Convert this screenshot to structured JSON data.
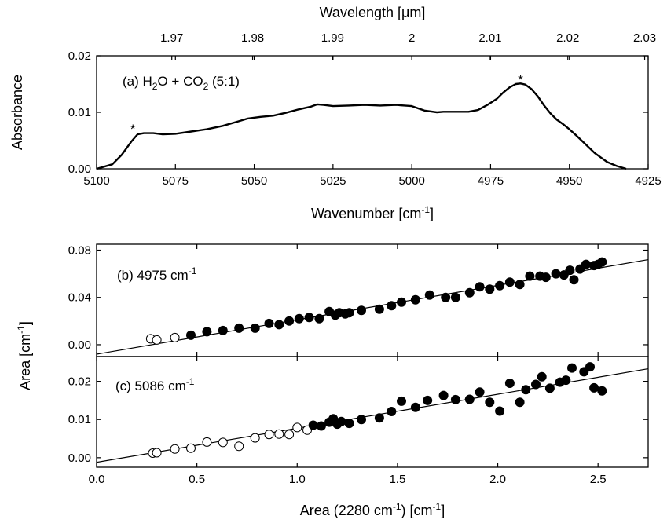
{
  "chart_data": [
    {
      "panel": "a",
      "type": "line",
      "title": "",
      "label": "(a) H₂O + CO₂ (5:1)",
      "label_parts": {
        "prefix": "(a) H",
        "sub1": "2",
        "mid": "O + CO",
        "sub2": "2",
        "suffix": " (5:1)"
      },
      "xlabel": "Wavenumber [cm-1]",
      "xlabel_parts": {
        "base": "Wavenumber [cm",
        "sup": "-1",
        "close": "]"
      },
      "x2label": "Wavelength [μm]",
      "ylabel": "Absorbance",
      "xlim": [
        5100,
        4925
      ],
      "ylim": [
        0,
        0.02
      ],
      "x_reversed": true,
      "x_ticks": [
        5100,
        5075,
        5050,
        5025,
        5000,
        4975,
        4950,
        4925
      ],
      "x_tick_labels": [
        "5100",
        "5075",
        "5050",
        "5025",
        "5000",
        "4975",
        "4950",
        "4925"
      ],
      "y_ticks": [
        0,
        0.01,
        0.02
      ],
      "y_tick_labels": [
        "0.00",
        "0.01",
        "0.02"
      ],
      "top_axis_ticks_um": [
        1.97,
        1.98,
        1.99,
        2.0,
        2.01,
        2.02,
        2.03
      ],
      "top_axis_tick_labels": [
        "1.97",
        "1.98",
        "1.99",
        "2",
        "2.01",
        "2.02",
        "2.03"
      ],
      "markers": [
        {
          "text": "*",
          "x": 5088.5,
          "y": 0.0072
        },
        {
          "text": "*",
          "x": 4965.5,
          "y": 0.016
        }
      ],
      "series": [
        {
          "x": [
            5100,
            5095,
            5092,
            5089,
            5087,
            5085,
            5082,
            5079,
            5075,
            5070,
            5065,
            5060,
            5055,
            5052,
            5048,
            5044,
            5040,
            5036,
            5032,
            5030,
            5028,
            5025,
            5020,
            5015,
            5010,
            5005,
            5000,
            4996,
            4992,
            4990,
            4986,
            4982,
            4979,
            4976,
            4973,
            4971,
            4969,
            4967,
            4965.5,
            4964,
            4962,
            4960,
            4958,
            4956,
            4954,
            4952,
            4950,
            4948,
            4945,
            4942,
            4938,
            4935,
            4932
          ],
          "y": [
            0.0,
            0.0008,
            0.0025,
            0.0048,
            0.0061,
            0.0063,
            0.0063,
            0.0061,
            0.0062,
            0.0066,
            0.007,
            0.0076,
            0.0084,
            0.0089,
            0.0092,
            0.0094,
            0.0099,
            0.0105,
            0.011,
            0.0114,
            0.0113,
            0.0111,
            0.0112,
            0.0113,
            0.0112,
            0.0113,
            0.0111,
            0.0103,
            0.01,
            0.0101,
            0.0101,
            0.0101,
            0.0104,
            0.0113,
            0.0124,
            0.0135,
            0.0144,
            0.015,
            0.0151,
            0.0149,
            0.0141,
            0.0128,
            0.0112,
            0.0098,
            0.0087,
            0.0079,
            0.007,
            0.006,
            0.0044,
            0.0028,
            0.0012,
            0.0005,
            0.0
          ]
        }
      ]
    },
    {
      "panel": "b",
      "type": "scatter",
      "label": "(b) 4975 cm-1",
      "label_parts": {
        "base": "(b) 4975 cm",
        "sup": "-1"
      },
      "ylabel": "Area [cm-1]",
      "ylabel_parts": {
        "base": "Area [cm",
        "sup": "-1",
        "close": "]"
      },
      "xlim": [
        0,
        2.75
      ],
      "ylim": [
        -0.01,
        0.085
      ],
      "y_ticks": [
        0,
        0.04,
        0.08
      ],
      "y_tick_labels": [
        "0.00",
        "0.04",
        "0.08"
      ],
      "fit_line": {
        "x": [
          0,
          2.75
        ],
        "y": [
          -0.008,
          0.072
        ]
      },
      "series": [
        {
          "marker": "open-circle",
          "points": [
            [
              0.27,
              0.005
            ],
            [
              0.3,
              0.004
            ],
            [
              0.39,
              0.006
            ]
          ]
        },
        {
          "marker": "filled-circle",
          "points": [
            [
              0.47,
              0.008
            ],
            [
              0.55,
              0.011
            ],
            [
              0.63,
              0.012
            ],
            [
              0.71,
              0.014
            ],
            [
              0.79,
              0.014
            ],
            [
              0.86,
              0.018
            ],
            [
              0.91,
              0.017
            ],
            [
              0.96,
              0.02
            ],
            [
              1.01,
              0.022
            ],
            [
              1.06,
              0.023
            ],
            [
              1.11,
              0.022
            ],
            [
              1.16,
              0.028
            ],
            [
              1.19,
              0.025
            ],
            [
              1.21,
              0.027
            ],
            [
              1.24,
              0.026
            ],
            [
              1.26,
              0.027
            ],
            [
              1.32,
              0.029
            ],
            [
              1.41,
              0.03
            ],
            [
              1.47,
              0.033
            ],
            [
              1.52,
              0.036
            ],
            [
              1.59,
              0.038
            ],
            [
              1.66,
              0.042
            ],
            [
              1.74,
              0.04
            ],
            [
              1.79,
              0.04
            ],
            [
              1.86,
              0.044
            ],
            [
              1.91,
              0.049
            ],
            [
              1.96,
              0.047
            ],
            [
              2.01,
              0.05
            ],
            [
              2.06,
              0.053
            ],
            [
              2.11,
              0.051
            ],
            [
              2.16,
              0.058
            ],
            [
              2.21,
              0.058
            ],
            [
              2.24,
              0.057
            ],
            [
              2.29,
              0.06
            ],
            [
              2.33,
              0.059
            ],
            [
              2.36,
              0.063
            ],
            [
              2.38,
              0.055
            ],
            [
              2.41,
              0.064
            ],
            [
              2.44,
              0.068
            ],
            [
              2.48,
              0.067
            ],
            [
              2.5,
              0.068
            ],
            [
              2.52,
              0.07
            ]
          ]
        }
      ]
    },
    {
      "panel": "c",
      "type": "scatter",
      "label": "(c) 5086 cm-1",
      "label_parts": {
        "base": "(c) 5086 cm",
        "sup": "-1"
      },
      "xlabel": "Area (2280 cm-1) [cm-1]",
      "xlabel_parts": {
        "base": "Area (2280 cm",
        "sup1": "-1",
        "mid": ") [cm",
        "sup2": "-1",
        "close": "]"
      },
      "xlim": [
        0,
        2.75
      ],
      "ylim": [
        -0.0025,
        0.0265
      ],
      "x_ticks": [
        0.0,
        0.5,
        1.0,
        1.5,
        2.0,
        2.5
      ],
      "x_tick_labels": [
        "0.0",
        "0.5",
        "1.0",
        "1.5",
        "2.0",
        "2.5"
      ],
      "y_ticks": [
        0,
        0.01,
        0.02
      ],
      "y_tick_labels": [
        "0.00",
        "0.01",
        "0.02"
      ],
      "fit_line": {
        "x": [
          0,
          2.75
        ],
        "y": [
          -0.0012,
          0.0233
        ]
      },
      "series": [
        {
          "marker": "open-circle",
          "points": [
            [
              0.28,
              0.0012
            ],
            [
              0.3,
              0.0013
            ],
            [
              0.39,
              0.0023
            ],
            [
              0.47,
              0.0025
            ],
            [
              0.55,
              0.0041
            ],
            [
              0.63,
              0.004
            ],
            [
              0.71,
              0.003
            ],
            [
              0.79,
              0.0052
            ],
            [
              0.86,
              0.0061
            ],
            [
              0.91,
              0.0062
            ],
            [
              0.96,
              0.0061
            ],
            [
              1.0,
              0.0079
            ],
            [
              1.05,
              0.0072
            ]
          ]
        },
        {
          "marker": "filled-circle",
          "points": [
            [
              1.08,
              0.0085
            ],
            [
              1.12,
              0.0083
            ],
            [
              1.16,
              0.0093
            ],
            [
              1.18,
              0.0102
            ],
            [
              1.2,
              0.0088
            ],
            [
              1.22,
              0.0095
            ],
            [
              1.26,
              0.009
            ],
            [
              1.32,
              0.01
            ],
            [
              1.41,
              0.0104
            ],
            [
              1.47,
              0.0121
            ],
            [
              1.52,
              0.0148
            ],
            [
              1.59,
              0.0132
            ],
            [
              1.65,
              0.015
            ],
            [
              1.73,
              0.0163
            ],
            [
              1.79,
              0.0152
            ],
            [
              1.86,
              0.0153
            ],
            [
              1.91,
              0.0172
            ],
            [
              1.96,
              0.0145
            ],
            [
              2.01,
              0.0122
            ],
            [
              2.06,
              0.0195
            ],
            [
              2.11,
              0.0145
            ],
            [
              2.14,
              0.0178
            ],
            [
              2.19,
              0.0192
            ],
            [
              2.22,
              0.0212
            ],
            [
              2.26,
              0.0182
            ],
            [
              2.31,
              0.0198
            ],
            [
              2.34,
              0.0203
            ],
            [
              2.37,
              0.0235
            ],
            [
              2.43,
              0.0225
            ],
            [
              2.46,
              0.0238
            ],
            [
              2.48,
              0.0183
            ],
            [
              2.52,
              0.0175
            ]
          ]
        }
      ]
    }
  ]
}
